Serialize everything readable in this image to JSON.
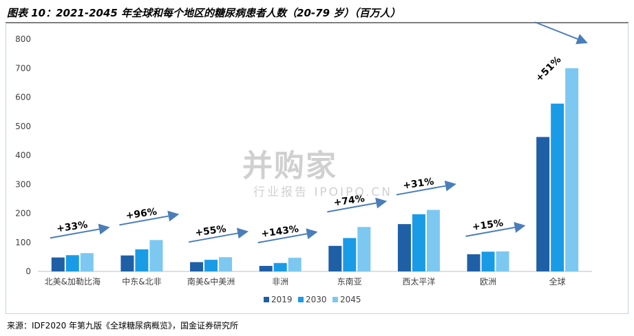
{
  "title": "图表 10：2021-2045 年全球和每个地区的糖尿病患者人数（20-79 岁）（百万人）",
  "source": "来源：IDF2020 年第九版《全球糖尿病概览》，国金证券研究所",
  "watermark": {
    "brand": "并购家",
    "sub": "行业报告 IPOIPO.CN"
  },
  "chart_data": {
    "type": "bar",
    "categories": [
      "北美&加勒比海",
      "中东&北非",
      "南美&中美洲",
      "非洲",
      "东南亚",
      "西太平洋",
      "欧洲",
      "全球"
    ],
    "series": [
      {
        "name": "2019",
        "values": [
          48,
          55,
          32,
          19,
          88,
          163,
          59,
          463
        ],
        "color": "#1f5fa6"
      },
      {
        "name": "2030",
        "values": [
          56,
          76,
          40,
          29,
          115,
          197,
          68,
          578
        ],
        "color": "#1a9be6"
      },
      {
        "name": "2045",
        "values": [
          63,
          108,
          49,
          47,
          153,
          212,
          69,
          700
        ],
        "color": "#7cc8f0"
      }
    ],
    "growth_labels": [
      "+33%",
      "+96%",
      "+55%",
      "+143%",
      "+74%",
      "+31%",
      "+15%",
      "+51%"
    ],
    "ylim": [
      0,
      800
    ],
    "yticks": [
      0,
      100,
      200,
      300,
      400,
      500,
      600,
      700,
      800
    ],
    "legend_position": "bottom",
    "grid": false
  }
}
